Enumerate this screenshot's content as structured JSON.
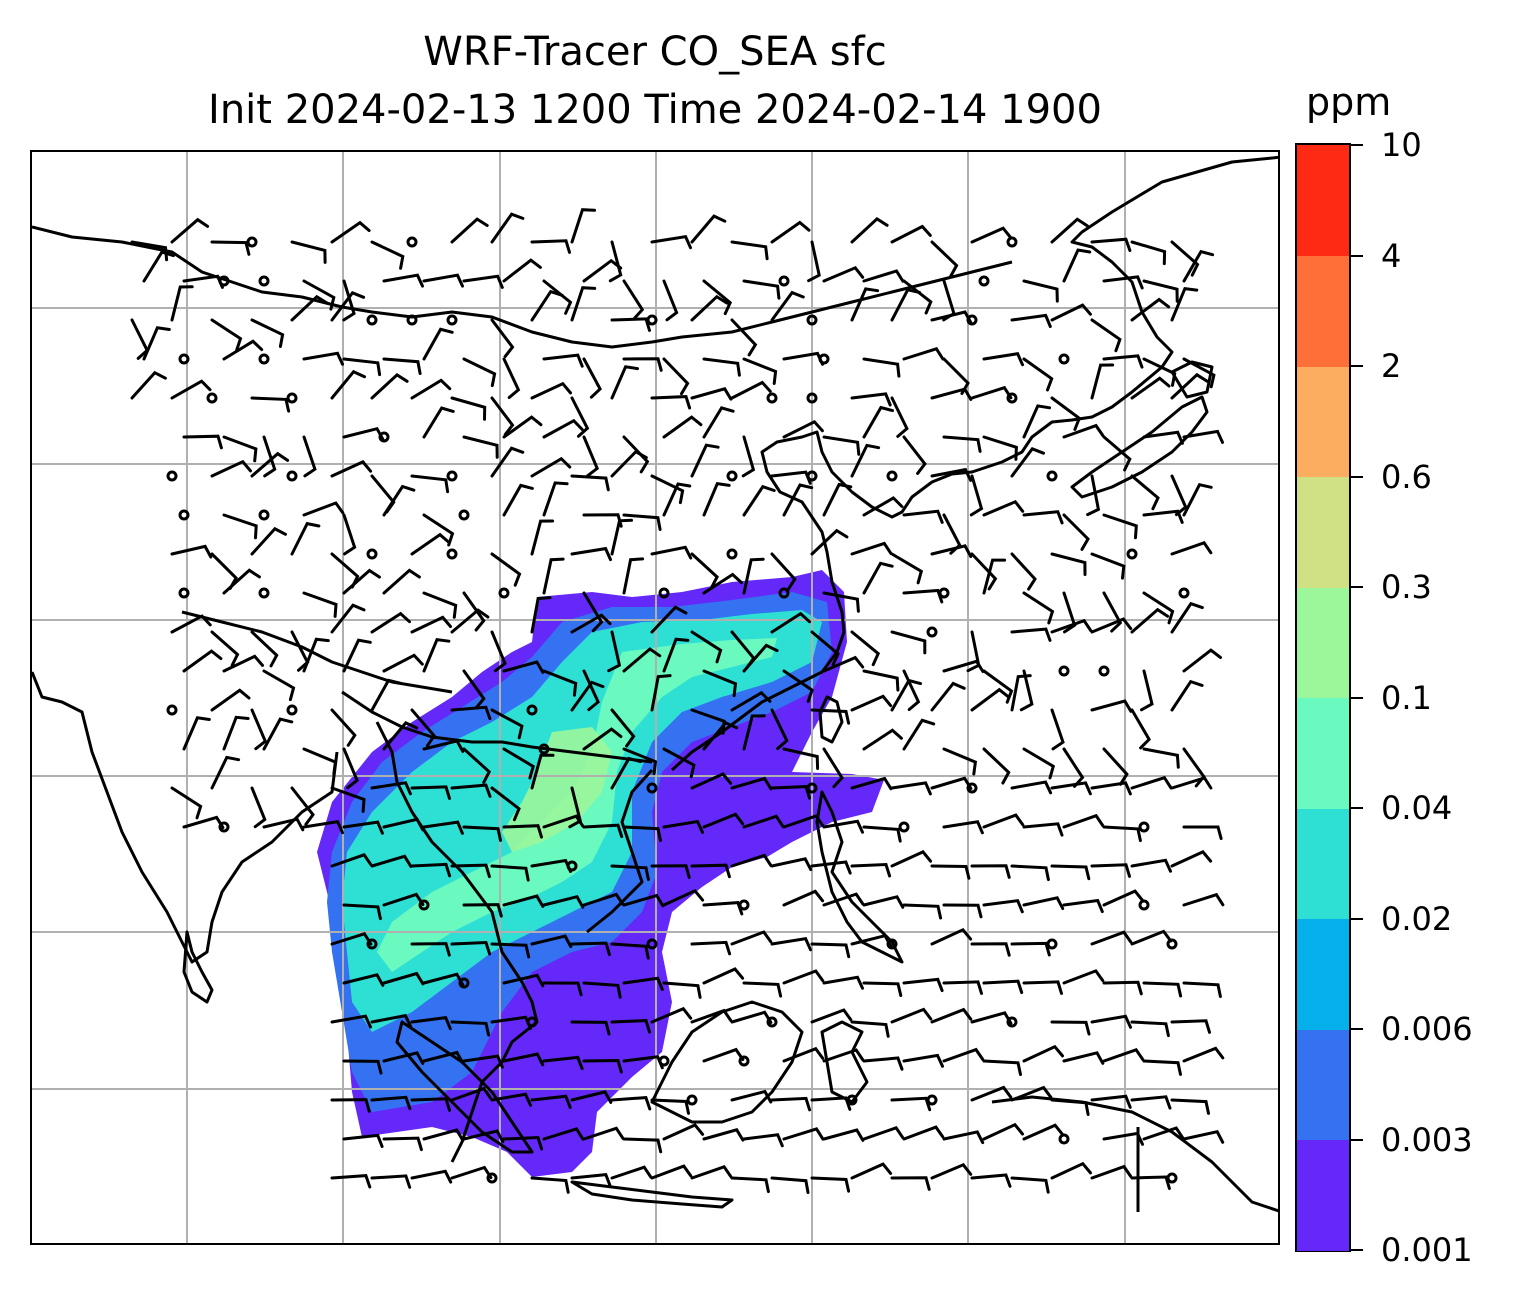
{
  "title": {
    "line1": "WRF-Tracer CO_SEA sfc",
    "line2": "Init 2024-02-13 1200 Time 2024-02-14 1900"
  },
  "colorbar": {
    "unit": "ppm",
    "levels": [
      "0.001",
      "0.003",
      "0.006",
      "0.02",
      "0.04",
      "0.1",
      "0.3",
      "0.6",
      "2",
      "4",
      "10"
    ],
    "colors": [
      "#6428f8",
      "#3472f2",
      "#06b0ea",
      "#2ee0d4",
      "#6afac0",
      "#9cf69a",
      "#d0e084",
      "#fdad60",
      "#ff7038",
      "#ff2a14"
    ]
  },
  "map": {
    "gridline_color": "#b0b0b0",
    "coastline_color": "#000000",
    "field_description": "CO_SEA surface tracer concentration with wind barbs"
  }
}
